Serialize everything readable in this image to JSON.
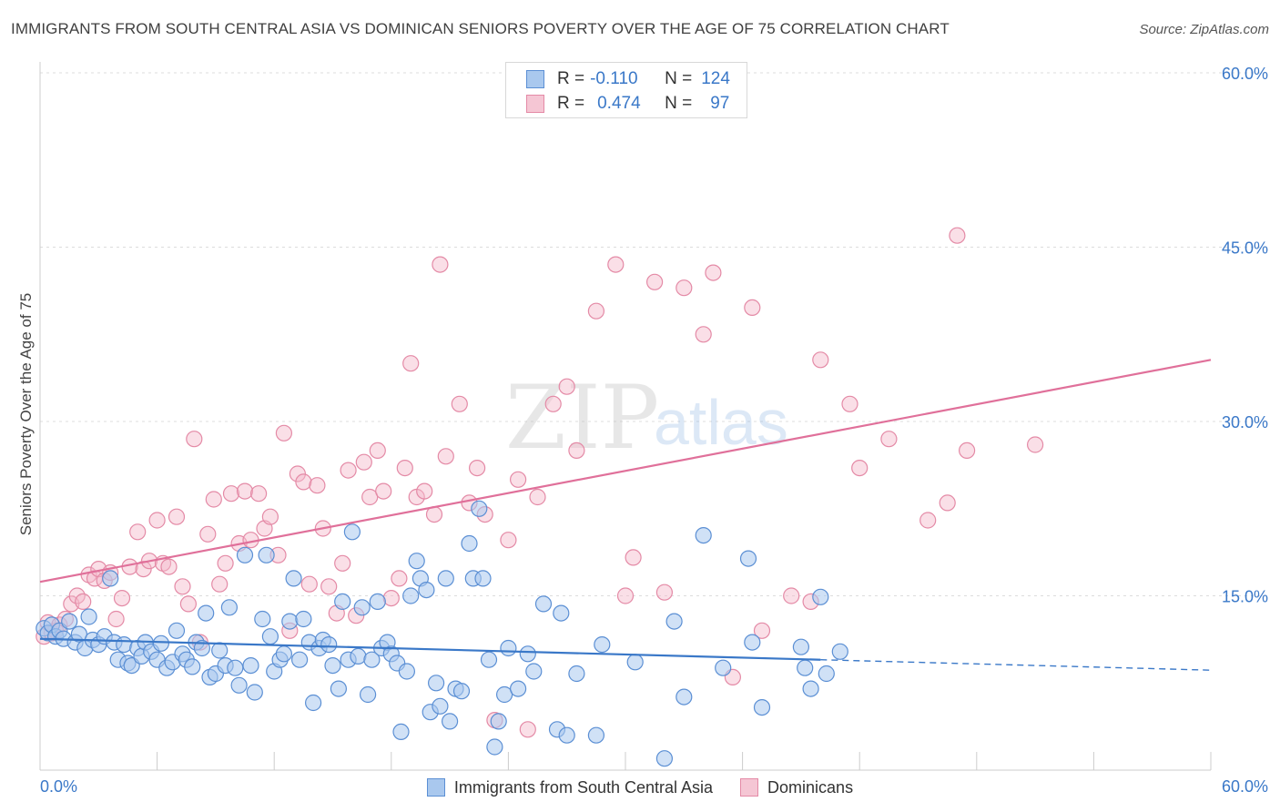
{
  "header": {
    "title": "IMMIGRANTS FROM SOUTH CENTRAL ASIA VS DOMINICAN SENIORS POVERTY OVER THE AGE OF 75 CORRELATION CHART",
    "source": "Source: ZipAtlas.com"
  },
  "watermark": {
    "zip": "ZIP",
    "atlas": "atlas"
  },
  "legend": {
    "row1": {
      "r_label": "R =",
      "r_value": "-0.110",
      "n_label": "N =",
      "n_value": "124"
    },
    "row2": {
      "r_label": "R =",
      "r_value": "0.474",
      "n_label": "N =",
      "n_value": "97"
    }
  },
  "colors": {
    "blue_fill": "#a9c8ee",
    "blue_stroke": "#5b8fd4",
    "blue_line": "#3a78c8",
    "pink_fill": "#f5b8c9",
    "pink_stroke": "#e48aa6",
    "pink_line": "#e0709a",
    "axis_text": "#3a78c8"
  },
  "chart_data": {
    "type": "scatter",
    "title": "IMMIGRANTS FROM SOUTH CENTRAL ASIA VS DOMINICAN SENIORS POVERTY OVER THE AGE OF 75 CORRELATION CHART",
    "xlabel": "",
    "ylabel": "Seniors Poverty Over the Age of 75",
    "xlim": [
      0,
      60
    ],
    "ylim": [
      0,
      60
    ],
    "x_tick_labels": [
      "0.0%",
      "60.0%"
    ],
    "y_tick_labels": [
      "15.0%",
      "30.0%",
      "45.0%",
      "60.0%"
    ],
    "y_ticks": [
      15,
      30,
      45,
      60
    ],
    "grid": true,
    "legend_position": "top-center",
    "series": [
      {
        "name": "Immigrants from South Central Asia",
        "r": -0.11,
        "n": 124,
        "trend": {
          "x": [
            0,
            40
          ],
          "y": [
            11.3,
            9.5
          ]
        },
        "trend_dashed": {
          "x": [
            40,
            60
          ],
          "y": [
            9.5,
            8.6
          ]
        },
        "points": [
          [
            0.2,
            12.2
          ],
          [
            0.4,
            11.8
          ],
          [
            0.6,
            12.5
          ],
          [
            0.8,
            11.5
          ],
          [
            1.0,
            12.0
          ],
          [
            1.2,
            11.3
          ],
          [
            1.5,
            12.8
          ],
          [
            1.8,
            11.0
          ],
          [
            2.0,
            11.7
          ],
          [
            2.3,
            10.5
          ],
          [
            2.5,
            13.2
          ],
          [
            2.7,
            11.2
          ],
          [
            3.0,
            10.8
          ],
          [
            3.3,
            11.5
          ],
          [
            3.6,
            16.5
          ],
          [
            3.8,
            11.0
          ],
          [
            4.0,
            9.5
          ],
          [
            4.3,
            10.8
          ],
          [
            4.5,
            9.2
          ],
          [
            4.7,
            9.0
          ],
          [
            5.0,
            10.5
          ],
          [
            5.2,
            9.8
          ],
          [
            5.4,
            11.0
          ],
          [
            5.7,
            10.2
          ],
          [
            6.0,
            9.5
          ],
          [
            6.2,
            10.9
          ],
          [
            6.5,
            8.8
          ],
          [
            6.8,
            9.3
          ],
          [
            7.0,
            12.0
          ],
          [
            7.3,
            10.0
          ],
          [
            7.5,
            9.5
          ],
          [
            7.8,
            8.9
          ],
          [
            8.0,
            11.0
          ],
          [
            8.3,
            10.5
          ],
          [
            8.5,
            13.5
          ],
          [
            8.7,
            8.0
          ],
          [
            9.0,
            8.3
          ],
          [
            9.2,
            10.3
          ],
          [
            9.5,
            9.0
          ],
          [
            9.7,
            14.0
          ],
          [
            10.0,
            8.8
          ],
          [
            10.2,
            7.3
          ],
          [
            10.5,
            18.5
          ],
          [
            10.8,
            9.0
          ],
          [
            11.0,
            6.7
          ],
          [
            11.4,
            13.0
          ],
          [
            11.6,
            18.5
          ],
          [
            11.8,
            11.5
          ],
          [
            12.0,
            8.5
          ],
          [
            12.3,
            9.5
          ],
          [
            12.5,
            10.0
          ],
          [
            12.8,
            12.8
          ],
          [
            13.0,
            16.5
          ],
          [
            13.3,
            9.5
          ],
          [
            13.5,
            13.0
          ],
          [
            13.8,
            11.0
          ],
          [
            14.0,
            5.8
          ],
          [
            14.3,
            10.5
          ],
          [
            14.5,
            11.2
          ],
          [
            14.8,
            10.8
          ],
          [
            15.0,
            9.0
          ],
          [
            15.3,
            7.0
          ],
          [
            15.5,
            14.5
          ],
          [
            15.8,
            9.5
          ],
          [
            16.0,
            20.5
          ],
          [
            16.3,
            9.8
          ],
          [
            16.5,
            14.0
          ],
          [
            16.8,
            6.5
          ],
          [
            17.0,
            9.5
          ],
          [
            17.3,
            14.5
          ],
          [
            17.5,
            10.5
          ],
          [
            17.8,
            11.0
          ],
          [
            18.0,
            10.0
          ],
          [
            18.3,
            9.2
          ],
          [
            18.5,
            3.3
          ],
          [
            18.8,
            8.5
          ],
          [
            19.0,
            15.0
          ],
          [
            19.3,
            18.0
          ],
          [
            19.5,
            16.5
          ],
          [
            19.8,
            15.5
          ],
          [
            20.0,
            5.0
          ],
          [
            20.3,
            7.5
          ],
          [
            20.5,
            5.5
          ],
          [
            20.8,
            16.5
          ],
          [
            21.0,
            4.2
          ],
          [
            21.3,
            7.0
          ],
          [
            21.6,
            6.8
          ],
          [
            22.0,
            19.5
          ],
          [
            22.2,
            16.5
          ],
          [
            22.5,
            22.5
          ],
          [
            22.7,
            16.5
          ],
          [
            23.0,
            9.5
          ],
          [
            23.3,
            2.0
          ],
          [
            23.5,
            4.2
          ],
          [
            23.8,
            6.5
          ],
          [
            24.0,
            10.5
          ],
          [
            24.5,
            7.0
          ],
          [
            25.0,
            10.0
          ],
          [
            25.3,
            8.5
          ],
          [
            25.8,
            14.3
          ],
          [
            26.5,
            3.5
          ],
          [
            26.7,
            13.5
          ],
          [
            27.0,
            3.0
          ],
          [
            27.5,
            8.3
          ],
          [
            28.5,
            3.0
          ],
          [
            28.8,
            10.8
          ],
          [
            30.5,
            9.3
          ],
          [
            32.0,
            1.0
          ],
          [
            32.5,
            12.8
          ],
          [
            33.0,
            6.3
          ],
          [
            34.0,
            20.2
          ],
          [
            35.0,
            8.8
          ],
          [
            36.3,
            18.2
          ],
          [
            36.5,
            11.0
          ],
          [
            37.0,
            5.4
          ],
          [
            39.0,
            10.6
          ],
          [
            39.2,
            8.8
          ],
          [
            39.5,
            7.0
          ],
          [
            40.0,
            14.9
          ],
          [
            40.3,
            8.3
          ],
          [
            41.0,
            10.2
          ]
        ]
      },
      {
        "name": "Dominicans",
        "r": 0.474,
        "n": 97,
        "trend": {
          "x": [
            0,
            60
          ],
          "y": [
            16.2,
            35.3
          ]
        },
        "points": [
          [
            0.2,
            11.5
          ],
          [
            0.4,
            12.7
          ],
          [
            0.6,
            11.8
          ],
          [
            0.8,
            12.0
          ],
          [
            1.0,
            12.5
          ],
          [
            1.3,
            13.0
          ],
          [
            1.6,
            14.3
          ],
          [
            1.9,
            15.0
          ],
          [
            2.2,
            14.5
          ],
          [
            2.5,
            16.8
          ],
          [
            2.8,
            16.5
          ],
          [
            3.0,
            17.3
          ],
          [
            3.3,
            16.3
          ],
          [
            3.6,
            17.0
          ],
          [
            3.9,
            13.0
          ],
          [
            4.2,
            14.8
          ],
          [
            4.6,
            17.5
          ],
          [
            5.0,
            20.5
          ],
          [
            5.3,
            17.3
          ],
          [
            5.6,
            18.0
          ],
          [
            6.0,
            21.5
          ],
          [
            6.3,
            17.8
          ],
          [
            6.6,
            17.5
          ],
          [
            7.0,
            21.8
          ],
          [
            7.3,
            15.8
          ],
          [
            7.6,
            14.3
          ],
          [
            7.9,
            28.5
          ],
          [
            8.2,
            11.0
          ],
          [
            8.6,
            20.3
          ],
          [
            8.9,
            23.3
          ],
          [
            9.2,
            16.0
          ],
          [
            9.5,
            17.8
          ],
          [
            9.8,
            23.8
          ],
          [
            10.2,
            19.5
          ],
          [
            10.5,
            24.0
          ],
          [
            10.8,
            19.8
          ],
          [
            11.2,
            23.8
          ],
          [
            11.5,
            20.8
          ],
          [
            11.8,
            21.8
          ],
          [
            12.2,
            18.5
          ],
          [
            12.5,
            29.0
          ],
          [
            12.8,
            12.0
          ],
          [
            13.2,
            25.5
          ],
          [
            13.5,
            24.8
          ],
          [
            13.8,
            16.0
          ],
          [
            14.2,
            24.5
          ],
          [
            14.5,
            20.8
          ],
          [
            14.8,
            15.8
          ],
          [
            15.2,
            13.5
          ],
          [
            15.5,
            17.8
          ],
          [
            15.8,
            25.8
          ],
          [
            16.2,
            13.3
          ],
          [
            16.6,
            26.5
          ],
          [
            16.9,
            23.5
          ],
          [
            17.3,
            27.5
          ],
          [
            17.6,
            24.0
          ],
          [
            18.0,
            14.8
          ],
          [
            18.4,
            16.5
          ],
          [
            18.7,
            26.0
          ],
          [
            19.0,
            35.0
          ],
          [
            19.3,
            23.5
          ],
          [
            19.7,
            24.0
          ],
          [
            20.2,
            22.0
          ],
          [
            20.5,
            43.5
          ],
          [
            20.8,
            27.0
          ],
          [
            21.5,
            31.5
          ],
          [
            22.0,
            23.0
          ],
          [
            22.4,
            26.0
          ],
          [
            22.8,
            22.0
          ],
          [
            23.3,
            4.3
          ],
          [
            24.0,
            19.8
          ],
          [
            24.5,
            25.0
          ],
          [
            25.0,
            3.5
          ],
          [
            25.5,
            23.5
          ],
          [
            26.3,
            31.5
          ],
          [
            27.0,
            33.0
          ],
          [
            27.5,
            27.5
          ],
          [
            28.5,
            39.5
          ],
          [
            29.5,
            43.5
          ],
          [
            30.0,
            15.0
          ],
          [
            30.4,
            18.3
          ],
          [
            31.5,
            42.0
          ],
          [
            32.0,
            15.3
          ],
          [
            33.0,
            41.5
          ],
          [
            34.0,
            37.5
          ],
          [
            34.5,
            42.8
          ],
          [
            35.5,
            8.0
          ],
          [
            36.5,
            39.8
          ],
          [
            37.0,
            12.0
          ],
          [
            38.5,
            15.0
          ],
          [
            39.5,
            14.5
          ],
          [
            40.0,
            35.3
          ],
          [
            41.5,
            31.5
          ],
          [
            42.0,
            26.0
          ],
          [
            43.5,
            28.5
          ],
          [
            45.5,
            21.5
          ],
          [
            46.5,
            23.0
          ],
          [
            47.0,
            46.0
          ],
          [
            47.5,
            27.5
          ],
          [
            51.0,
            28.0
          ]
        ]
      }
    ]
  },
  "bottom_legend": {
    "item1": "Immigrants from South Central Asia",
    "item2": "Dominicans"
  }
}
